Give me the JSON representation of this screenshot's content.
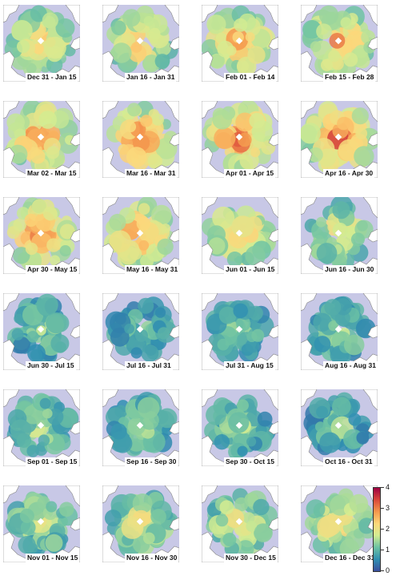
{
  "panels": [
    {
      "label": "Dec 31 - Jan 15",
      "level": 0.55
    },
    {
      "label": "Jan 16 - Jan 31",
      "level": 0.58
    },
    {
      "label": "Feb 01 - Feb 14",
      "level": 0.6
    },
    {
      "label": "Feb 15 - Feb 28",
      "level": 0.63
    },
    {
      "label": "Mar 02 - Mar 15",
      "level": 0.66
    },
    {
      "label": "Mar 16 - Mar 31",
      "level": 0.67
    },
    {
      "label": "Apr 01 - Apr 15",
      "level": 0.69
    },
    {
      "label": "Apr 16 - Apr 30",
      "level": 0.7
    },
    {
      "label": "Apr 30 - May 15",
      "level": 0.67
    },
    {
      "label": "May 16 - May 31",
      "level": 0.64
    },
    {
      "label": "Jun 01 - Jun 15",
      "level": 0.55
    },
    {
      "label": "Jun 16 - Jun 30",
      "level": 0.48
    },
    {
      "label": "Jun 30 - Jul 15",
      "level": 0.32
    },
    {
      "label": "Jul 16 - Jul 31",
      "level": 0.28
    },
    {
      "label": "Jul 31 - Aug 15",
      "level": 0.3
    },
    {
      "label": "Aug 16 - Aug 31",
      "level": 0.34
    },
    {
      "label": "Sep 01 - Sep 15",
      "level": 0.36
    },
    {
      "label": "Sep 16 - Sep 30",
      "level": 0.36
    },
    {
      "label": "Sep 30 - Oct 15",
      "level": 0.33
    },
    {
      "label": "Oct 16 - Oct 31",
      "level": 0.3
    },
    {
      "label": "Nov 01 - Nov 15",
      "level": 0.42
    },
    {
      "label": "Nov 16 - Nov 30",
      "level": 0.45
    },
    {
      "label": "Nov 30 - Dec 15",
      "level": 0.48
    },
    {
      "label": "Dec 16 - Dec 31",
      "level": 0.52
    }
  ],
  "colorbar": {
    "ticks": [
      "4",
      "3",
      "2",
      "1",
      "0"
    ],
    "min": 0,
    "max": 4,
    "colors": [
      "#3b4f9e",
      "#2f8fb1",
      "#6fc3a3",
      "#d3ec92",
      "#fdd77a",
      "#f59a4e",
      "#d9453a",
      "#9e0142"
    ]
  },
  "colors": {
    "background_sea": "#c8c8e6",
    "land": "#ffffff",
    "coast": "#888888",
    "pole_marker": "#ffffff"
  }
}
